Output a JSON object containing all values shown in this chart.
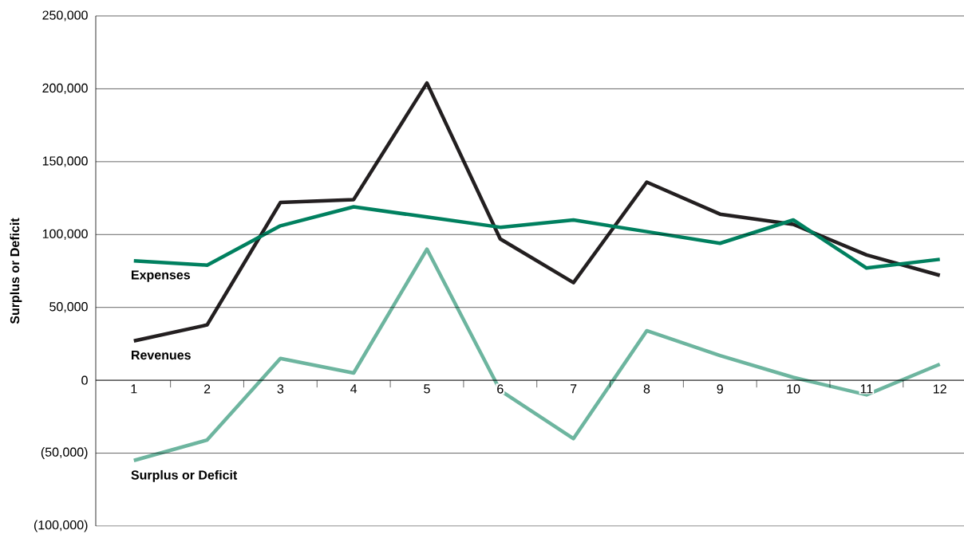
{
  "chart_data": {
    "type": "line",
    "ylabel": "Surplus or Deficit",
    "categories": [
      "1",
      "2",
      "3",
      "4",
      "5",
      "6",
      "7",
      "8",
      "9",
      "10",
      "11",
      "12"
    ],
    "series": [
      {
        "name": "Revenues",
        "color": "#231f20",
        "values": [
          27000,
          38000,
          122000,
          124000,
          204000,
          97000,
          67000,
          136000,
          114000,
          107000,
          86000,
          72000
        ]
      },
      {
        "name": "Expenses",
        "color": "#00805f",
        "values": [
          82000,
          79000,
          106000,
          119000,
          112000,
          105000,
          110000,
          102000,
          94000,
          110000,
          77000,
          83000
        ]
      },
      {
        "name": "Surplus or Deficit",
        "color": "#6db59f",
        "values": [
          -55000,
          -41000,
          15000,
          5000,
          90000,
          -7000,
          -40000,
          34000,
          17000,
          2000,
          -10000,
          11000
        ]
      }
    ],
    "ylim": [
      -100000,
      250000
    ],
    "yticks": [
      {
        "value": -100000,
        "label": "(100,000)"
      },
      {
        "value": -50000,
        "label": "(50,000)"
      },
      {
        "value": 0,
        "label": "0"
      },
      {
        "value": 50000,
        "label": "50,000"
      },
      {
        "value": 100000,
        "label": "100,000"
      },
      {
        "value": 150000,
        "label": "150,000"
      },
      {
        "value": 200000,
        "label": "200,000"
      },
      {
        "value": 250000,
        "label": "250,000"
      }
    ],
    "grid": "y",
    "legend": false,
    "marker": "none",
    "line_style": "solid"
  }
}
